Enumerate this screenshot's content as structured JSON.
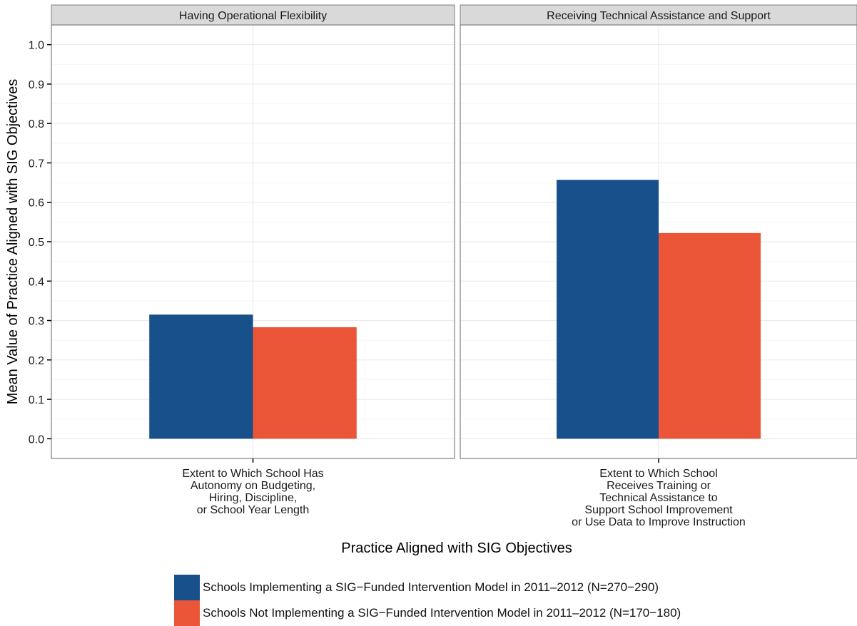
{
  "colors": {
    "series_implementing": "#17508b",
    "series_not_implementing": "#ea5637",
    "strip_fill": "#d9d9d9",
    "panel_border": "#7f7f7f",
    "grid_major": "#ebebeb",
    "grid_minor": "#f4f4f4"
  },
  "chart_data": {
    "type": "bar",
    "ylabel": "Mean Value of Practice Aligned with SIG Objectives",
    "xlabel": "Practice Aligned with SIG Objectives",
    "ylim": [
      -0.05,
      1.05
    ],
    "yticks": [
      0.0,
      0.1,
      0.2,
      0.3,
      0.4,
      0.5,
      0.6,
      0.7,
      0.8,
      0.9,
      1.0
    ],
    "ytick_labels": [
      "0.0",
      "0.1",
      "0.2",
      "0.3",
      "0.4",
      "0.5",
      "0.6",
      "0.7",
      "0.8",
      "0.9",
      "1.0"
    ],
    "grid": true,
    "legend_position": "bottom",
    "series_names": [
      "Schools Implementing a SIG−Funded Intervention Model in 2011–2012 (N=270−290)",
      "Schools Not Implementing a SIG−Funded Intervention Model in 2011–2012 (N=170−180)"
    ],
    "panels": [
      {
        "strip": "Having Operational Flexibility",
        "category_lines": [
          "Extent to Which School Has",
          "Autonomy on Budgeting,",
          "Hiring, Discipline,",
          "or School Year Length"
        ],
        "values": [
          0.315,
          0.283
        ]
      },
      {
        "strip": "Receiving Technical Assistance and Support",
        "category_lines": [
          "Extent to Which School",
          "Receives Training or",
          "Technical Assistance to",
          "Support School Improvement",
          "or Use Data to Improve Instruction"
        ],
        "values": [
          0.657,
          0.522
        ]
      }
    ]
  }
}
